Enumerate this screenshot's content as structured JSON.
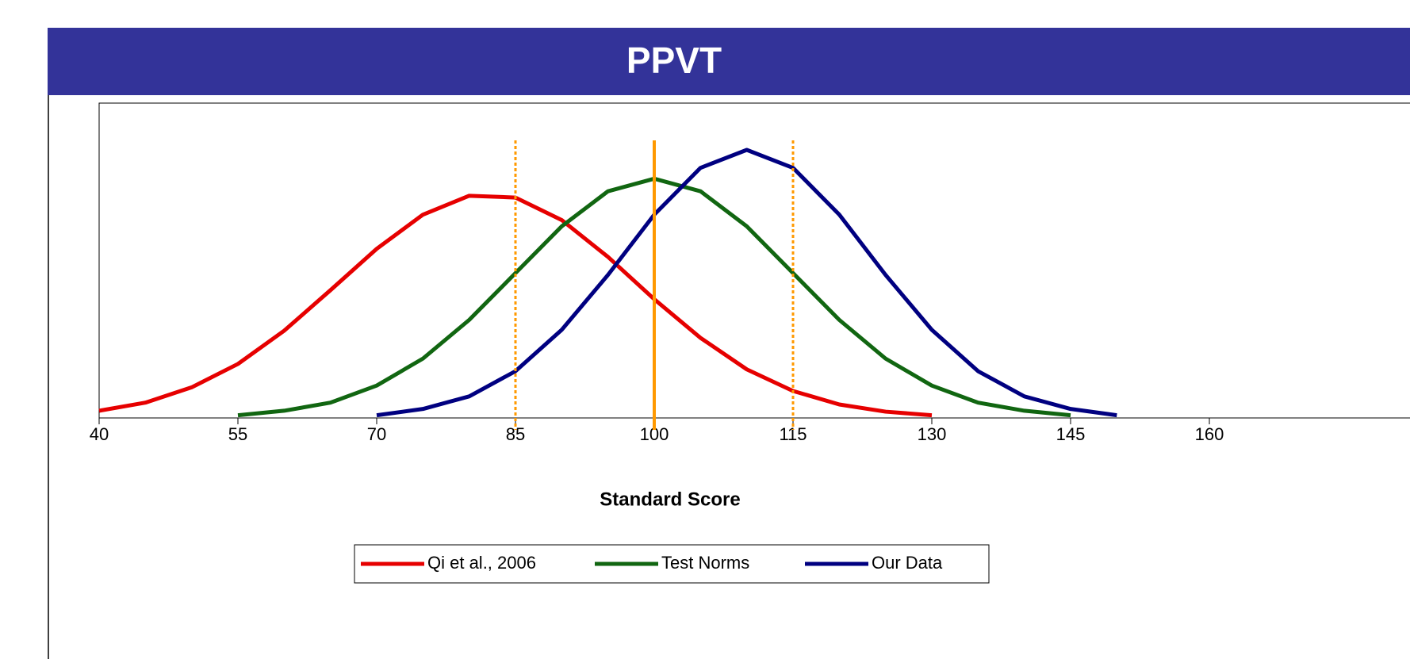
{
  "chart_data": {
    "type": "line",
    "title": "PPVT",
    "x_label": "Standard Score",
    "xlim": [
      40,
      160
    ],
    "xticks": [
      40,
      55,
      70,
      85,
      100,
      115,
      130,
      145,
      160
    ],
    "ylim": [
      0,
      0.035
    ],
    "legend": "bottom",
    "series": [
      {
        "name": "Qi et al., 2006",
        "color": "#e60000",
        "x": [
          40,
          45,
          50,
          55,
          60,
          65,
          70,
          75,
          80,
          85,
          90,
          95,
          100,
          105,
          110,
          115,
          120,
          125,
          130
        ],
        "values": [
          0.0008,
          0.0017,
          0.0034,
          0.006,
          0.0097,
          0.0142,
          0.0188,
          0.0226,
          0.0247,
          0.0245,
          0.022,
          0.0179,
          0.0132,
          0.0089,
          0.0054,
          0.003,
          0.0015,
          0.0007,
          0.0003
        ]
      },
      {
        "name": "Test Norms",
        "color": "#116611",
        "x": [
          55,
          60,
          65,
          70,
          75,
          80,
          85,
          90,
          95,
          100,
          105,
          110,
          115,
          120,
          125,
          130,
          135,
          140,
          145
        ],
        "values": [
          0.0003,
          0.0008,
          0.0017,
          0.0036,
          0.0066,
          0.0109,
          0.0161,
          0.0213,
          0.0252,
          0.0266,
          0.0252,
          0.0213,
          0.0161,
          0.0109,
          0.0066,
          0.0036,
          0.0017,
          0.0008,
          0.0003
        ]
      },
      {
        "name": "Our Data",
        "color": "#000080",
        "x": [
          70,
          75,
          80,
          85,
          90,
          95,
          100,
          105,
          110,
          115,
          120,
          125,
          130,
          135,
          140,
          145,
          150
        ],
        "values": [
          0.0003,
          0.001,
          0.0024,
          0.0052,
          0.0098,
          0.0159,
          0.0226,
          0.0278,
          0.0298,
          0.0278,
          0.0226,
          0.0159,
          0.0098,
          0.0052,
          0.0024,
          0.001,
          0.0003
        ]
      }
    ],
    "vlines": [
      {
        "x": 85,
        "dashed": true,
        "color": "#ff9900"
      },
      {
        "x": 100,
        "dashed": false,
        "color": "#ff9900"
      },
      {
        "x": 115,
        "dashed": true,
        "color": "#ff9900"
      }
    ]
  }
}
